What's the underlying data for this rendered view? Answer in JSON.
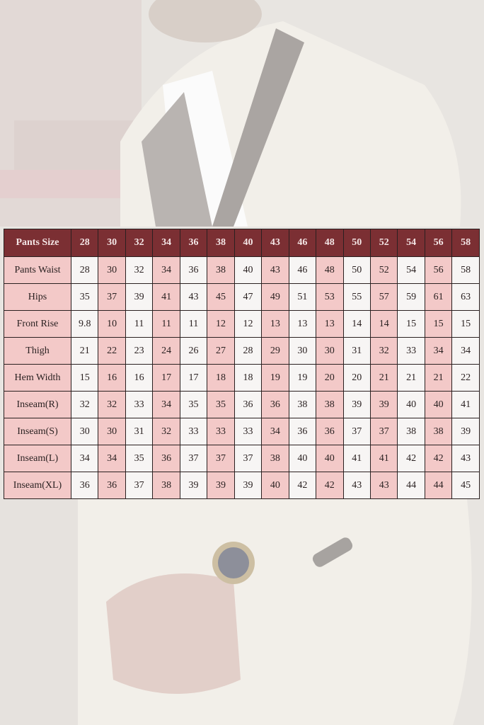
{
  "colors": {
    "header": "#7b2f33",
    "highlight": "#f3c9c8",
    "cell": "#f7f5f4"
  },
  "table": {
    "corner_label": "Pants Size",
    "sizes": [
      "28",
      "30",
      "32",
      "34",
      "36",
      "38",
      "40",
      "43",
      "46",
      "48",
      "50",
      "52",
      "54",
      "56",
      "58"
    ],
    "rows": [
      {
        "label": "Pants Waist",
        "values": [
          "28",
          "30",
          "32",
          "34",
          "36",
          "38",
          "40",
          "43",
          "46",
          "48",
          "50",
          "52",
          "54",
          "56",
          "58"
        ]
      },
      {
        "label": "Hips",
        "values": [
          "35",
          "37",
          "39",
          "41",
          "43",
          "45",
          "47",
          "49",
          "51",
          "53",
          "55",
          "57",
          "59",
          "61",
          "63"
        ]
      },
      {
        "label": "Front Rise",
        "values": [
          "9.8",
          "10",
          "11",
          "11",
          "11",
          "12",
          "12",
          "13",
          "13",
          "13",
          "14",
          "14",
          "15",
          "15",
          "15"
        ]
      },
      {
        "label": "Thigh",
        "values": [
          "21",
          "22",
          "23",
          "24",
          "26",
          "27",
          "28",
          "29",
          "30",
          "30",
          "31",
          "32",
          "33",
          "34",
          "34"
        ]
      },
      {
        "label": "Hem Width",
        "values": [
          "15",
          "16",
          "16",
          "17",
          "17",
          "18",
          "18",
          "19",
          "19",
          "20",
          "20",
          "21",
          "21",
          "21",
          "22"
        ]
      },
      {
        "label": "Inseam(R)",
        "values": [
          "32",
          "32",
          "33",
          "34",
          "35",
          "35",
          "36",
          "36",
          "38",
          "38",
          "39",
          "39",
          "40",
          "40",
          "41"
        ]
      },
      {
        "label": "Inseam(S)",
        "values": [
          "30",
          "30",
          "31",
          "32",
          "33",
          "33",
          "33",
          "34",
          "36",
          "36",
          "37",
          "37",
          "38",
          "38",
          "39"
        ]
      },
      {
        "label": "Inseam(L)",
        "values": [
          "34",
          "34",
          "35",
          "36",
          "37",
          "37",
          "37",
          "38",
          "40",
          "40",
          "41",
          "41",
          "42",
          "42",
          "43"
        ]
      },
      {
        "label": "Inseam(XL)",
        "values": [
          "36",
          "36",
          "37",
          "38",
          "39",
          "39",
          "39",
          "40",
          "42",
          "42",
          "43",
          "43",
          "44",
          "44",
          "45"
        ]
      }
    ]
  }
}
